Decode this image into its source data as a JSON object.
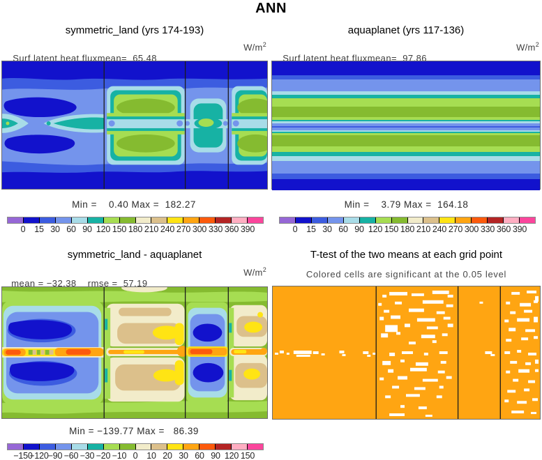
{
  "figure_title": "ANN",
  "palette": {
    "purple": "#9667d6",
    "navy": "#1212cc",
    "blue": "#3c5ce0",
    "cornflower": "#7494ec",
    "cyan": "#a8dce8",
    "teal": "#17b2a4",
    "lightgreen": "#a6dd52",
    "olive": "#85bb30",
    "cream": "#f2ecca",
    "tan": "#dcc08b",
    "yellow": "#ffe414",
    "orange": "#ffa512",
    "orangered": "#fc5a0c",
    "darkred": "#b42424",
    "pink": "#ffaec2",
    "magenta": "#fb459c",
    "white": "#ffffff"
  },
  "palette_order": [
    "purple",
    "navy",
    "blue",
    "cornflower",
    "cyan",
    "teal",
    "lightgreen",
    "olive",
    "cream",
    "tan",
    "yellow",
    "orange",
    "orangered",
    "darkred",
    "pink",
    "magenta"
  ],
  "panels": {
    "top_left": {
      "title": "symmetric_land (yrs 174-193)",
      "stats": "Surf latent heat fluxmean=  65.48",
      "units_base": "W/m",
      "units_exp": "2",
      "minmax": "Min =    0.40 Max =  182.27"
    },
    "top_right": {
      "title": "aquaplanet (yrs 117-136)",
      "stats": "Surf latent heat fluxmean=  97.86",
      "units_base": "W/m",
      "units_exp": "2",
      "minmax": "Min =    3.79 Max =  164.18"
    },
    "bottom_left": {
      "title": "symmetric_land - aquaplanet",
      "stats": "mean = −32.38    rmse =  57.19",
      "units_base": "W/m",
      "units_exp": "2",
      "minmax": "Min = −139.77 Max =   86.39"
    },
    "bottom_right": {
      "title": "T-test of the two means at each grid point",
      "subtitle": "Colored cells are significant at the 0.05 level"
    }
  },
  "colorbars": {
    "flux": {
      "ticks": [
        "0",
        "15",
        "30",
        "60",
        "90",
        "120",
        "150",
        "180",
        "210",
        "240",
        "270",
        "300",
        "330",
        "360",
        "390"
      ]
    },
    "diff": {
      "ticks": [
        "−150",
        "−120",
        "−90",
        "−60",
        "−30",
        "−20",
        "−10",
        "0",
        "10",
        "20",
        "30",
        "60",
        "90",
        "120",
        "150"
      ]
    }
  },
  "aquaplanet_stripes": [
    [
      "navy",
      20
    ],
    [
      "blue",
      6
    ],
    [
      "cornflower",
      17
    ],
    [
      "cyan",
      5
    ],
    [
      "teal",
      5
    ],
    [
      "lightgreen",
      12
    ],
    [
      "olive",
      15
    ],
    [
      "lightgreen",
      4
    ],
    [
      "teal",
      2
    ],
    [
      "cyan",
      3
    ],
    [
      "cornflower",
      4
    ],
    [
      "blue",
      2
    ],
    [
      "cornflower",
      4
    ],
    [
      "cyan",
      2
    ],
    [
      "teal",
      2
    ],
    [
      "lightgreen",
      3
    ],
    [
      "olive",
      16
    ],
    [
      "lightgreen",
      8
    ],
    [
      "teal",
      6
    ],
    [
      "cyan",
      7
    ],
    [
      "cornflower",
      18
    ],
    [
      "blue",
      8
    ],
    [
      "navy",
      16
    ]
  ],
  "ttest_speckles": {
    "s1": [
      [
        3,
        96,
        5,
        3
      ],
      [
        10,
        93,
        6,
        4
      ],
      [
        20,
        96,
        4,
        3
      ],
      [
        30,
        93,
        26,
        5
      ],
      [
        34,
        99,
        20,
        3
      ],
      [
        58,
        94,
        8,
        4
      ],
      [
        70,
        97,
        5,
        3
      ],
      [
        96,
        93,
        7,
        4
      ],
      [
        100,
        98,
        5,
        3
      ],
      [
        130,
        94,
        8,
        4
      ],
      [
        136,
        99,
        5,
        3
      ],
      [
        144,
        96,
        4,
        3
      ]
    ],
    "s2": [
      [
        158,
        12,
        6,
        4
      ],
      [
        168,
        8,
        26,
        5
      ],
      [
        200,
        10,
        18,
        4
      ],
      [
        230,
        6,
        24,
        5
      ],
      [
        252,
        12,
        8,
        4
      ],
      [
        152,
        24,
        5,
        4
      ],
      [
        176,
        22,
        10,
        4
      ],
      [
        216,
        20,
        30,
        5
      ],
      [
        250,
        26,
        10,
        4
      ],
      [
        160,
        34,
        8,
        4
      ],
      [
        196,
        32,
        22,
        5
      ],
      [
        236,
        36,
        12,
        4
      ],
      [
        154,
        44,
        6,
        5
      ],
      [
        170,
        42,
        14,
        5
      ],
      [
        208,
        46,
        26,
        5
      ],
      [
        246,
        44,
        10,
        4
      ],
      [
        162,
        56,
        18,
        10
      ],
      [
        190,
        54,
        8,
        5
      ],
      [
        222,
        58,
        16,
        4
      ],
      [
        252,
        54,
        8,
        5
      ],
      [
        156,
        68,
        10,
        6
      ],
      [
        178,
        66,
        6,
        4
      ],
      [
        214,
        70,
        20,
        5
      ],
      [
        244,
        68,
        8,
        4
      ],
      [
        196,
        80,
        10,
        4
      ],
      [
        230,
        78,
        6,
        4
      ],
      [
        168,
        96,
        8,
        5
      ],
      [
        186,
        94,
        16,
        4
      ],
      [
        218,
        96,
        6,
        4
      ],
      [
        240,
        94,
        12,
        4
      ],
      [
        158,
        108,
        12,
        6
      ],
      [
        184,
        106,
        6,
        4
      ],
      [
        206,
        110,
        18,
        5
      ],
      [
        242,
        108,
        8,
        4
      ],
      [
        166,
        120,
        8,
        5
      ],
      [
        198,
        118,
        24,
        5
      ],
      [
        238,
        122,
        10,
        4
      ],
      [
        154,
        132,
        6,
        4
      ],
      [
        180,
        130,
        14,
        5
      ],
      [
        216,
        134,
        22,
        4
      ],
      [
        250,
        130,
        8,
        4
      ],
      [
        172,
        144,
        10,
        4
      ],
      [
        204,
        146,
        16,
        4
      ],
      [
        240,
        144,
        6,
        4
      ],
      [
        162,
        158,
        8,
        4
      ],
      [
        192,
        156,
        20,
        4
      ],
      [
        236,
        158,
        8,
        4
      ],
      [
        184,
        172,
        6,
        4
      ],
      [
        210,
        174,
        12,
        4
      ],
      [
        168,
        184,
        22,
        4
      ],
      [
        220,
        186,
        10,
        3
      ]
    ],
    "s3": [
      [
        306,
        94,
        10,
        4
      ],
      [
        314,
        98,
        6,
        3
      ],
      [
        298,
        22,
        5,
        3
      ]
    ],
    "s4": [
      [
        344,
        8,
        12,
        4
      ],
      [
        366,
        6,
        14,
        4
      ],
      [
        378,
        14,
        5,
        8
      ],
      [
        336,
        22,
        6,
        4
      ],
      [
        356,
        24,
        16,
        5
      ],
      [
        376,
        20,
        6,
        4
      ],
      [
        342,
        36,
        8,
        4
      ],
      [
        362,
        34,
        12,
        4
      ],
      [
        334,
        48,
        6,
        4
      ],
      [
        352,
        46,
        18,
        5
      ],
      [
        376,
        44,
        6,
        8
      ],
      [
        340,
        60,
        10,
        5
      ],
      [
        364,
        62,
        14,
        4
      ],
      [
        336,
        76,
        8,
        4
      ],
      [
        358,
        74,
        10,
        4
      ],
      [
        376,
        72,
        6,
        4
      ],
      [
        334,
        94,
        8,
        4
      ],
      [
        352,
        92,
        6,
        4
      ],
      [
        368,
        96,
        12,
        4
      ],
      [
        342,
        108,
        10,
        4
      ],
      [
        364,
        110,
        8,
        4
      ],
      [
        378,
        106,
        5,
        6
      ],
      [
        336,
        122,
        6,
        4
      ],
      [
        354,
        120,
        16,
        5
      ],
      [
        378,
        120,
        5,
        4
      ],
      [
        346,
        134,
        8,
        4
      ],
      [
        368,
        136,
        10,
        4
      ],
      [
        338,
        150,
        12,
        4
      ],
      [
        362,
        148,
        8,
        4
      ],
      [
        334,
        164,
        6,
        4
      ],
      [
        352,
        166,
        14,
        4
      ],
      [
        374,
        162,
        8,
        4
      ],
      [
        344,
        180,
        18,
        4
      ],
      [
        372,
        182,
        8,
        3
      ]
    ]
  },
  "chart_data": [
    {
      "type": "heatmap",
      "panel": "top_left",
      "title": "symmetric_land (yrs 174-193)",
      "variable": "Surf latent heat flux",
      "units": "W/m^2",
      "mean": 65.48,
      "min": 0.4,
      "max": 182.27,
      "levels": [
        0,
        15,
        30,
        60,
        90,
        120,
        150,
        180,
        210,
        240,
        270,
        300,
        330,
        360,
        390
      ],
      "legend_position": "bottom",
      "description": "Lat-lon contour map; dark-blue low flux at poles, blue ocean sectors, teal equatorial band, green maxima (90-150) over the two symmetric land sectors bounded by vertical lines at ~38%, 69% and 85% of the width"
    },
    {
      "type": "heatmap",
      "panel": "top_right",
      "title": "aquaplanet (yrs 117-136)",
      "variable": "Surf latent heat flux",
      "units": "W/m^2",
      "mean": 97.86,
      "min": 3.79,
      "max": 164.18,
      "levels": [
        0,
        15,
        30,
        60,
        90,
        120,
        150,
        180,
        210,
        240,
        270,
        300,
        330,
        360,
        390
      ],
      "legend_position": "bottom",
      "description": "Zonally symmetric horizontal bands: dark blue at poles, cornflower mid-latitudes, olive-green subtropical maxima (~120-150), narrow blue minimum right on the equator"
    },
    {
      "type": "heatmap",
      "panel": "bottom_left",
      "title": "symmetric_land - aquaplanet",
      "units": "W/m^2",
      "mean": -32.38,
      "rmse": 57.19,
      "min": -139.77,
      "max": 86.39,
      "levels": [
        -150,
        -120,
        -90,
        -60,
        -30,
        -20,
        -10,
        0,
        10,
        20,
        30,
        60,
        90,
        120,
        150
      ],
      "legend_position": "bottom",
      "description": "Difference map on olive (0 to 10) background: large negative blue cells (-90 to -120) over ocean sectors, positive cream/tan/yellow (10-60) over land sectors, orange-red positive stripe (60-150) along the equator"
    },
    {
      "type": "heatmap",
      "panel": "bottom_right",
      "title": "T-test of the two means at each grid point",
      "note": "Colored cells are significant at the 0.05 level",
      "significant_color": "#ffa512",
      "description": "Nearly all grid cells significant (orange); scattered white non-significant cells, concentrated over the two land sectors and along the equator of the first ocean sector"
    }
  ]
}
